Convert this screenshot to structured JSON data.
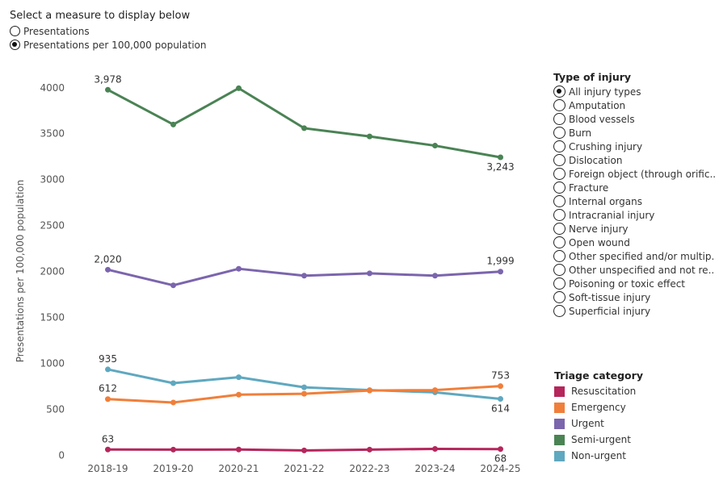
{
  "measure_selector": {
    "title": "Select a measure to display below",
    "options": [
      {
        "label": "Presentations",
        "selected": false
      },
      {
        "label": "Presentations per 100,000 population",
        "selected": true
      }
    ]
  },
  "injury_filter": {
    "title": "Type of injury",
    "options": [
      {
        "label": "All injury types",
        "selected": true
      },
      {
        "label": "Amputation",
        "selected": false
      },
      {
        "label": "Blood vessels",
        "selected": false
      },
      {
        "label": "Burn",
        "selected": false
      },
      {
        "label": "Crushing injury",
        "selected": false
      },
      {
        "label": "Dislocation",
        "selected": false
      },
      {
        "label": "Foreign object (through orific..",
        "selected": false
      },
      {
        "label": "Fracture",
        "selected": false
      },
      {
        "label": "Internal organs",
        "selected": false
      },
      {
        "label": "Intracranial injury",
        "selected": false
      },
      {
        "label": "Nerve injury",
        "selected": false
      },
      {
        "label": "Open wound",
        "selected": false
      },
      {
        "label": "Other specified and/or multip..",
        "selected": false
      },
      {
        "label": "Other unspecified and not re..",
        "selected": false
      },
      {
        "label": "Poisoning or toxic effect",
        "selected": false
      },
      {
        "label": "Soft-tissue injury",
        "selected": false
      },
      {
        "label": "Superficial injury",
        "selected": false
      }
    ]
  },
  "triage_legend": {
    "title": "Triage category",
    "items": [
      {
        "label": "Resuscitation",
        "color": "#b5265c"
      },
      {
        "label": "Emergency",
        "color": "#f07f3a"
      },
      {
        "label": "Urgent",
        "color": "#7b65ad"
      },
      {
        "label": "Semi-urgent",
        "color": "#4a8354"
      },
      {
        "label": "Non-urgent",
        "color": "#5fa8c0"
      }
    ]
  },
  "chart_data": {
    "type": "line",
    "ylabel": "Presentations per 100,000 population",
    "xlabel": "",
    "categories": [
      "2018-19",
      "2019-20",
      "2020-21",
      "2021-22",
      "2022-23",
      "2023-24",
      "2024-25"
    ],
    "ylim": [
      -40,
      4200
    ],
    "yticks": [
      0,
      500,
      1000,
      1500,
      2000,
      2500,
      3000,
      3500,
      4000
    ],
    "grid": false,
    "series": [
      {
        "name": "Semi-urgent",
        "color": "#4a8354",
        "values": [
          3978,
          3600,
          3995,
          3560,
          3470,
          3370,
          3243
        ],
        "labels": {
          "first": "3,978",
          "last": "3,243"
        }
      },
      {
        "name": "Urgent",
        "color": "#7b65ad",
        "values": [
          2020,
          1850,
          2030,
          1955,
          1980,
          1955,
          1999
        ],
        "labels": {
          "first": "2,020",
          "last": "1,999"
        }
      },
      {
        "name": "Non-urgent",
        "color": "#5fa8c0",
        "values": [
          935,
          785,
          850,
          740,
          710,
          685,
          614
        ],
        "labels": {
          "first": "935",
          "last": "614"
        }
      },
      {
        "name": "Emergency",
        "color": "#f07f3a",
        "values": [
          612,
          575,
          660,
          670,
          705,
          710,
          753
        ],
        "labels": {
          "first": "612",
          "last": "753"
        }
      },
      {
        "name": "Resuscitation",
        "color": "#b5265c",
        "values": [
          63,
          62,
          63,
          53,
          62,
          70,
          68
        ],
        "labels": {
          "first": "63",
          "last": "68"
        }
      }
    ]
  }
}
